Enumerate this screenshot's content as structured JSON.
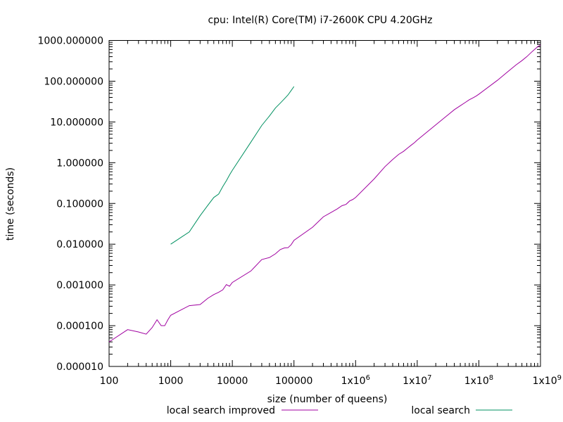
{
  "chart_data": {
    "type": "line",
    "title": "cpu: Intel(R) Core(TM) i7-2600K CPU  4.20GHz",
    "xlabel": "size (number of queens)",
    "ylabel": "time (seconds)",
    "x_scale": "log",
    "y_scale": "log",
    "xlim": [
      100,
      1000000000
    ],
    "ylim": [
      1e-05,
      1000
    ],
    "grid": false,
    "legend_position": "bottom",
    "x_ticks": [
      {
        "value": 100,
        "label": "100",
        "base": "",
        "exp": ""
      },
      {
        "value": 1000,
        "label": "1000",
        "base": "",
        "exp": ""
      },
      {
        "value": 10000,
        "label": "10000",
        "base": "",
        "exp": ""
      },
      {
        "value": 100000,
        "label": "100000",
        "base": "",
        "exp": ""
      },
      {
        "value": 1000000,
        "label": "",
        "base": "1x10",
        "exp": "6"
      },
      {
        "value": 10000000,
        "label": "",
        "base": "1x10",
        "exp": "7"
      },
      {
        "value": 100000000,
        "label": "",
        "base": "1x10",
        "exp": "8"
      },
      {
        "value": 1000000000,
        "label": "",
        "base": "1x10",
        "exp": "9"
      }
    ],
    "y_ticks": [
      {
        "value": 1e-05,
        "label": "0.000010"
      },
      {
        "value": 0.0001,
        "label": "0.000100"
      },
      {
        "value": 0.001,
        "label": "0.001000"
      },
      {
        "value": 0.01,
        "label": "0.010000"
      },
      {
        "value": 0.1,
        "label": "0.100000"
      },
      {
        "value": 1,
        "label": "1.000000"
      },
      {
        "value": 10,
        "label": "10.000000"
      },
      {
        "value": 100,
        "label": "100.000000"
      },
      {
        "value": 1000,
        "label": "1000.000000"
      }
    ],
    "series": [
      {
        "name": "local search improved",
        "color": "#a000a0",
        "x": [
          100,
          200,
          300,
          400,
          500,
          600,
          700,
          800,
          900,
          1000,
          2000,
          3000,
          4000,
          5000,
          6000,
          7000,
          8000,
          9000,
          10000,
          20000,
          30000,
          40000,
          50000,
          60000,
          70000,
          80000,
          90000,
          100000,
          200000,
          300000,
          400000,
          500000,
          600000,
          700000,
          800000,
          900000,
          1000000,
          2000000,
          3000000,
          4000000,
          5000000,
          6000000,
          7000000,
          8000000,
          9000000,
          10000000,
          20000000,
          30000000,
          40000000,
          50000000,
          60000000,
          70000000,
          80000000,
          90000000,
          100000000,
          200000000,
          300000000,
          400000000,
          500000000,
          600000000,
          700000000,
          800000000,
          900000000,
          1000000000
        ],
        "y": [
          4e-05,
          8e-05,
          7e-05,
          6.2e-05,
          9e-05,
          0.00014,
          0.0001,
          0.0001,
          0.00014,
          0.00018,
          0.00031,
          0.00033,
          0.00047,
          0.00058,
          0.00066,
          0.00076,
          0.00102,
          0.00093,
          0.00115,
          0.0022,
          0.0042,
          0.0047,
          0.0058,
          0.0074,
          0.0081,
          0.0082,
          0.0097,
          0.0124,
          0.026,
          0.047,
          0.06,
          0.073,
          0.088,
          0.095,
          0.115,
          0.125,
          0.14,
          0.4,
          0.8,
          1.2,
          1.6,
          1.9,
          2.3,
          2.7,
          3.1,
          3.6,
          8.5,
          14,
          20,
          25,
          30,
          35,
          39,
          43,
          48,
          105,
          175,
          250,
          320,
          400,
          500,
          600,
          700,
          780
        ]
      },
      {
        "name": "local search",
        "color": "#009060",
        "x": [
          1000,
          2000,
          3000,
          4000,
          5000,
          6000,
          7000,
          8000,
          9000,
          10000,
          20000,
          30000,
          40000,
          50000,
          60000,
          70000,
          80000,
          90000,
          100000
        ],
        "y": [
          0.01,
          0.02,
          0.05,
          0.09,
          0.14,
          0.17,
          0.26,
          0.36,
          0.5,
          0.65,
          3.2,
          8.2,
          14,
          22,
          29,
          37,
          46,
          59,
          74
        ]
      }
    ]
  }
}
